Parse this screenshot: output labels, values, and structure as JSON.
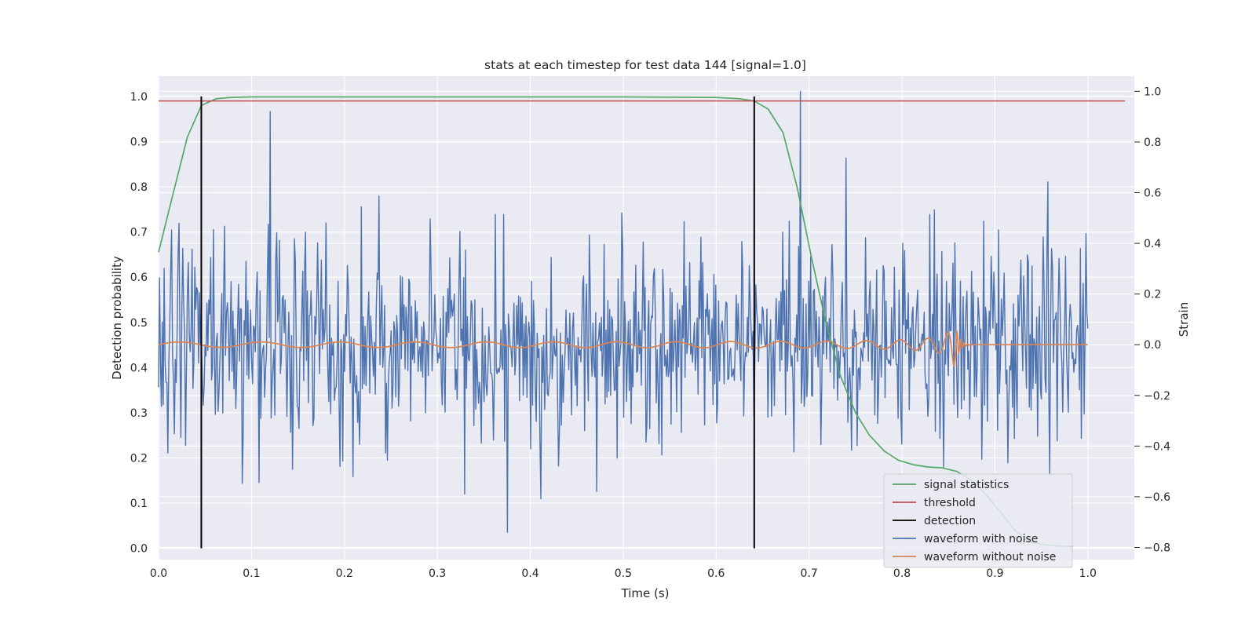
{
  "chart_data": {
    "type": "line",
    "title": "stats at each timestep for test data 144 [signal=1.0]",
    "xlabel": "Time (s)",
    "ylabel": "Detection probability",
    "ylabel_right": "Strain",
    "xlim": [
      0.0,
      1.05
    ],
    "ylim": [
      -0.025,
      1.045
    ],
    "ylim_right": [
      -0.848,
      1.06
    ],
    "xticks": [
      "0.0",
      "0.1",
      "0.2",
      "0.3",
      "0.4",
      "0.5",
      "0.6",
      "0.7",
      "0.8",
      "0.9",
      "1.0"
    ],
    "yticks": [
      "0.0",
      "0.1",
      "0.2",
      "0.3",
      "0.4",
      "0.5",
      "0.6",
      "0.7",
      "0.8",
      "0.9",
      "1.0"
    ],
    "yticks_right": [
      "−0.8",
      "−0.6",
      "−0.4",
      "−0.2",
      "0.0",
      "0.2",
      "0.4",
      "0.6",
      "0.8",
      "1.0"
    ],
    "grid": true,
    "legend_position": "lower-right",
    "colors": {
      "signal_statistics": "#55a868",
      "threshold": "#c44e52",
      "detection": "#000000",
      "waveform_with_noise": "#4c72b0",
      "waveform_without_noise": "#dd8452",
      "plot_background": "#eaeaf2",
      "grid": "#ffffff"
    },
    "series": [
      {
        "name": "signal statistics",
        "axis": "left",
        "x": [
          0.0,
          0.015,
          0.031,
          0.046,
          0.062,
          0.077,
          0.1,
          0.2,
          0.3,
          0.4,
          0.5,
          0.6,
          0.625,
          0.641,
          0.656,
          0.672,
          0.687,
          0.703,
          0.718,
          0.734,
          0.75,
          0.765,
          0.781,
          0.796,
          0.812,
          0.828,
          0.843,
          0.859,
          0.875,
          0.89,
          0.906,
          0.921,
          0.937,
          0.953,
          0.968,
          0.984
        ],
        "y": [
          0.655,
          0.78,
          0.91,
          0.98,
          0.995,
          0.998,
          0.999,
          0.999,
          0.999,
          0.999,
          0.999,
          0.998,
          0.995,
          0.99,
          0.972,
          0.92,
          0.8,
          0.64,
          0.5,
          0.38,
          0.3,
          0.25,
          0.215,
          0.195,
          0.185,
          0.18,
          0.178,
          0.17,
          0.15,
          0.12,
          0.08,
          0.04,
          0.015,
          0.008,
          0.005,
          0.004
        ]
      },
      {
        "name": "threshold",
        "axis": "left",
        "x": [
          0.0,
          1.04
        ],
        "y": [
          0.99,
          0.99
        ]
      },
      {
        "name": "detection",
        "axis": "left",
        "x_positions": [
          0.046,
          0.641
        ],
        "y_range": [
          0.0,
          1.0
        ]
      },
      {
        "name": "waveform with noise",
        "axis": "right",
        "x_range": [
          0.0,
          1.0
        ],
        "n_points": 1000,
        "amplitude_std": 0.2,
        "y_min": -0.74,
        "y_max": 1.0
      },
      {
        "name": "waveform without noise",
        "axis": "right",
        "x_range": [
          0.0,
          1.0
        ],
        "amplitude_early": 0.01,
        "amplitude_peak": 0.12,
        "merger_time": 0.858,
        "y_after_merger": 0.0
      }
    ],
    "legend": [
      "signal statistics",
      "threshold",
      "detection",
      "waveform with noise",
      "waveform without noise"
    ]
  }
}
